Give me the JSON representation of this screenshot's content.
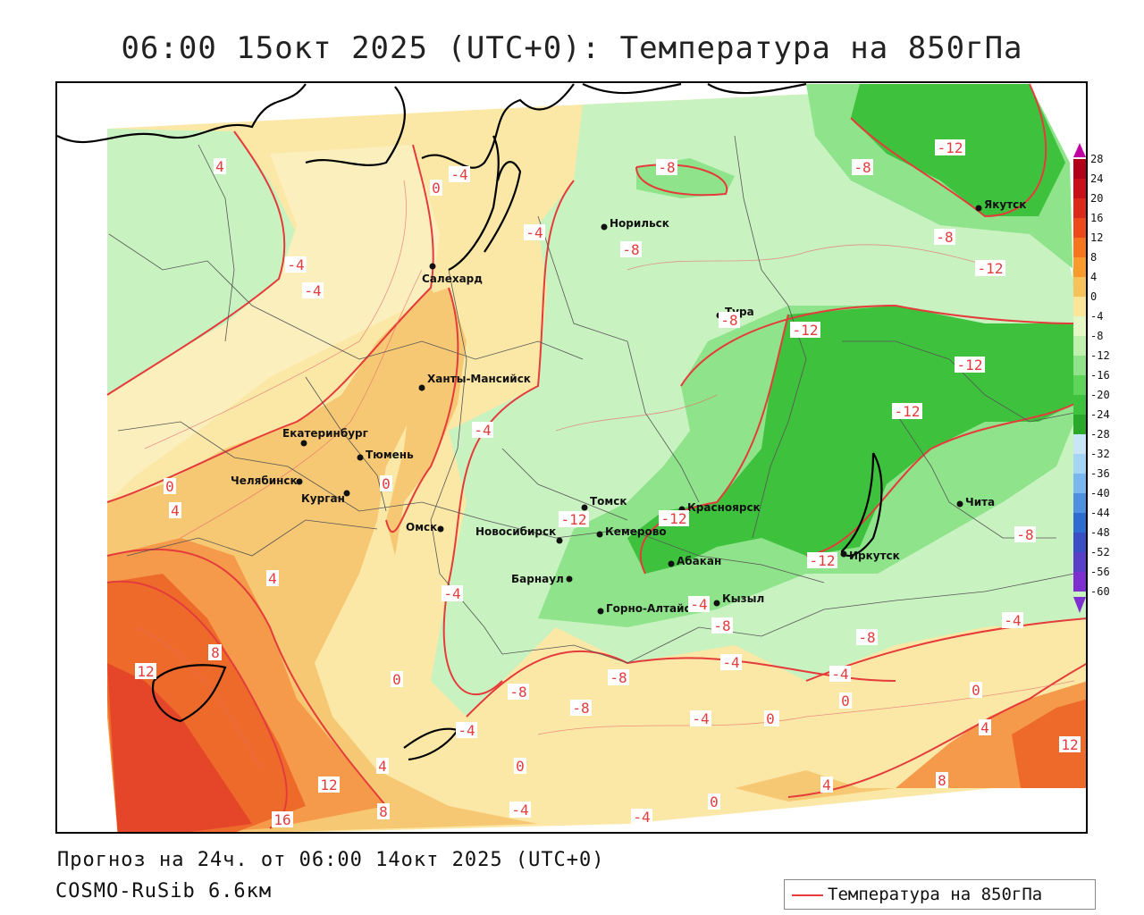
{
  "title": "06:00 15окт 2025 (UTC+0): Температура на 850гПа",
  "forecast_line": "Прогноз на 24ч. от 06:00 14окт 2025 (UTC+0)",
  "model_line": "COSMO-RuSib 6.6км",
  "legend_label": "Температура на 850гПа",
  "colors": {
    "contour": "#e43b3b",
    "coast": "#000000",
    "border": "#555555"
  },
  "colorbar": {
    "ticks": [
      "28",
      "24",
      "20",
      "16",
      "12",
      "8",
      "4",
      "0",
      "-4",
      "-8",
      "-12",
      "-16",
      "-20",
      "-24",
      "-28",
      "-32",
      "-36",
      "-40",
      "-44",
      "-48",
      "-52",
      "-56",
      "-60"
    ]
  },
  "cities": [
    {
      "name": "Салехард"
    },
    {
      "name": "Норильск"
    },
    {
      "name": "Якутск"
    },
    {
      "name": "Тура"
    },
    {
      "name": "Ханты-Мансийск"
    },
    {
      "name": "Екатеринбург"
    },
    {
      "name": "Тюмень"
    },
    {
      "name": "Челябинск"
    },
    {
      "name": "Курган"
    },
    {
      "name": "Омск"
    },
    {
      "name": "Новосибирск"
    },
    {
      "name": "Томск"
    },
    {
      "name": "Кемерово"
    },
    {
      "name": "Красноярск"
    },
    {
      "name": "Барнаул"
    },
    {
      "name": "Абакан"
    },
    {
      "name": "Горно-Алтайск"
    },
    {
      "name": "Кызыл"
    },
    {
      "name": "Иркутск"
    },
    {
      "name": "Чита"
    }
  ],
  "contour_labels": [
    "4",
    "0",
    "-4",
    "-4",
    "-4",
    "-4",
    "-4",
    "-8",
    "-8",
    "-8",
    "-8",
    "-12",
    "-8",
    "-12",
    "-12",
    "-12",
    "-12",
    "-12",
    "-12",
    "-12",
    "0",
    "4",
    "0",
    "4",
    "-4",
    "-4",
    "4",
    "8",
    "12",
    "16",
    "12",
    "8",
    "0",
    "-4",
    "-8",
    "-8",
    "-8",
    "-4",
    "-4",
    "0",
    "-4",
    "0",
    "0",
    "4",
    "-4",
    "-8",
    "-8",
    "-4",
    "-4",
    "0",
    "4",
    "12",
    "8",
    "4",
    "0",
    "-4",
    "0",
    "-8"
  ]
}
